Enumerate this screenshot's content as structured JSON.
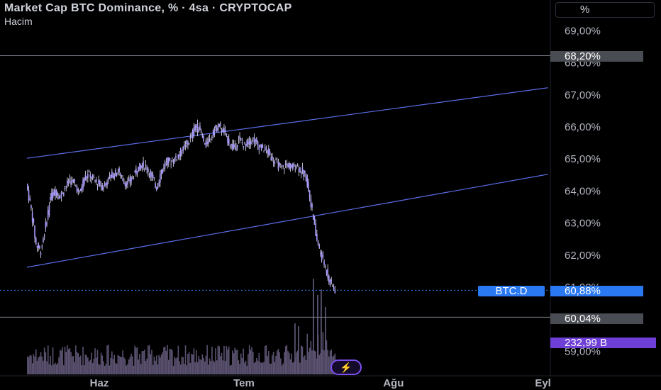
{
  "header": {
    "title": "Market Cap BTC Dominance, % · 4sa · CRYPTOCAP",
    "subtitle": "Hacim"
  },
  "scale_button": {
    "label": "%"
  },
  "symbol_tag": {
    "label": "BTC.D"
  },
  "price_tags": [
    {
      "id": "resistance",
      "label": "68,20%",
      "value": 68.2,
      "color": "#4a4c53"
    },
    {
      "id": "current",
      "label": "60,88%",
      "value": 60.88,
      "color": "#2a79f2"
    },
    {
      "id": "support",
      "label": "60,04%",
      "value": 60.04,
      "color": "#4a4c53"
    },
    {
      "id": "volume",
      "label": "232,99 B",
      "color": "#6e3fd6"
    }
  ],
  "colors": {
    "background": "#000000",
    "candle": "#a99bff",
    "wick": "#e8e6ff",
    "channel": "#5b6ee8",
    "volume": "#5a5270",
    "hline": "#787b86",
    "current_line": "#2a79f2",
    "axis_text": "#b2b5be"
  },
  "icons": {
    "flash": "lightning-icon"
  },
  "chart_data": {
    "type": "candlestick",
    "title": "Market Cap BTC Dominance, % · 4sa · CRYPTOCAP",
    "xlabel": "",
    "ylabel": "",
    "x_ticks": [
      "Haz",
      "Tem",
      "Ağu",
      "Eyl"
    ],
    "y_ticks": [
      "69,00%",
      "68,00%",
      "67,00%",
      "66,00%",
      "65,00%",
      "64,00%",
      "63,00%",
      "62,00%",
      "61,00%",
      "59,00%"
    ],
    "y_tick_values": [
      69,
      68,
      67,
      66,
      65,
      64,
      63,
      62,
      61,
      59
    ],
    "ylim": [
      58.75,
      69.6
    ],
    "grid": false,
    "horizontal_levels": [
      68.2,
      60.04
    ],
    "current_value": 60.88,
    "channel": {
      "upper": {
        "start": [
          "2025-05-17",
          65.0
        ],
        "end": [
          "2025-09-02",
          67.2
        ]
      },
      "lower": {
        "start": [
          "2025-05-17",
          61.6
        ],
        "end": [
          "2025-09-02",
          64.5
        ]
      }
    },
    "series": [
      {
        "name": "BTC.D",
        "points": [
          [
            "2025-05-17",
            64.2
          ],
          [
            "2025-05-18",
            63.4
          ],
          [
            "2025-05-19",
            62.3
          ],
          [
            "2025-05-20",
            62.1
          ],
          [
            "2025-05-21",
            62.9
          ],
          [
            "2025-05-22",
            63.8
          ],
          [
            "2025-05-23",
            64.0
          ],
          [
            "2025-05-24",
            63.8
          ],
          [
            "2025-05-25",
            64.1
          ],
          [
            "2025-05-26",
            64.3
          ],
          [
            "2025-05-27",
            64.2
          ],
          [
            "2025-05-28",
            63.9
          ],
          [
            "2025-05-29",
            64.4
          ],
          [
            "2025-05-30",
            64.5
          ],
          [
            "2025-05-31",
            64.3
          ],
          [
            "2025-06-01",
            64.2
          ],
          [
            "2025-06-02",
            64.1
          ],
          [
            "2025-06-03",
            64.4
          ],
          [
            "2025-06-04",
            64.5
          ],
          [
            "2025-06-05",
            64.6
          ],
          [
            "2025-06-06",
            64.3
          ],
          [
            "2025-06-07",
            64.2
          ],
          [
            "2025-06-08",
            64.4
          ],
          [
            "2025-06-09",
            64.7
          ],
          [
            "2025-06-10",
            64.8
          ],
          [
            "2025-06-11",
            64.7
          ],
          [
            "2025-06-12",
            64.4
          ],
          [
            "2025-06-13",
            64.1
          ],
          [
            "2025-06-14",
            64.6
          ],
          [
            "2025-06-15",
            64.9
          ],
          [
            "2025-06-16",
            64.9
          ],
          [
            "2025-06-17",
            65.0
          ],
          [
            "2025-06-18",
            65.2
          ],
          [
            "2025-06-19",
            65.4
          ],
          [
            "2025-06-20",
            65.6
          ],
          [
            "2025-06-21",
            66.0
          ],
          [
            "2025-06-22",
            65.9
          ],
          [
            "2025-06-23",
            65.4
          ],
          [
            "2025-06-24",
            65.6
          ],
          [
            "2025-06-25",
            65.9
          ],
          [
            "2025-06-26",
            66.0
          ],
          [
            "2025-06-27",
            65.8
          ],
          [
            "2025-06-28",
            65.5
          ],
          [
            "2025-06-29",
            65.3
          ],
          [
            "2025-06-30",
            65.6
          ],
          [
            "2025-07-01",
            65.4
          ],
          [
            "2025-07-02",
            65.5
          ],
          [
            "2025-07-03",
            65.6
          ],
          [
            "2025-07-04",
            65.4
          ],
          [
            "2025-07-05",
            65.3
          ],
          [
            "2025-07-06",
            65.2
          ],
          [
            "2025-07-07",
            65.0
          ],
          [
            "2025-07-08",
            64.8
          ],
          [
            "2025-07-09",
            64.7
          ],
          [
            "2025-07-10",
            64.8
          ],
          [
            "2025-07-11",
            64.7
          ],
          [
            "2025-07-12",
            64.8
          ],
          [
            "2025-07-13",
            64.6
          ],
          [
            "2025-07-14",
            64.4
          ],
          [
            "2025-07-15",
            63.6
          ],
          [
            "2025-07-16",
            62.6
          ],
          [
            "2025-07-17",
            62.0
          ],
          [
            "2025-07-18",
            61.6
          ],
          [
            "2025-07-19",
            61.1
          ],
          [
            "2025-07-20",
            60.88
          ]
        ]
      }
    ],
    "volume_series": {
      "name": "Hacim",
      "last": "232,99 B"
    }
  }
}
